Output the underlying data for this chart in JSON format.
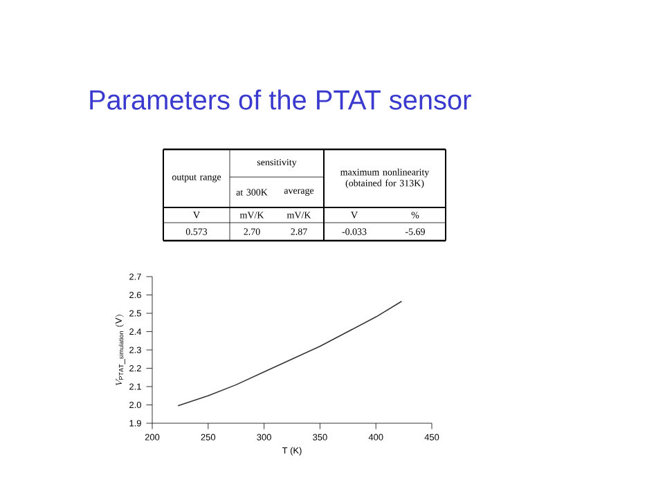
{
  "chart_data": {
    "type": "line",
    "title": "Parameters of the PTAT sensor",
    "xlabel": "T (K)",
    "ylabel": "V_{\\mathrm{PTAT\\_simulation}}\\ (\\mathrm{V})",
    "x": [
      223,
      250,
      275,
      300,
      325,
      350,
      375,
      400,
      423
    ],
    "values": [
      1.995,
      2.05,
      2.11,
      2.18,
      2.25,
      2.32,
      2.4,
      2.48,
      2.565
    ],
    "color": "#333333",
    "xlim": [
      200,
      450
    ],
    "ylim": [
      1.9,
      2.7
    ],
    "xticks": [
      200,
      250,
      300,
      350,
      400,
      450
    ],
    "yticks": [
      {
        "value": 1.9,
        "label": "1.9"
      },
      {
        "value": 2.0,
        "label": "2.0"
      },
      {
        "value": 2.1,
        "label": "2.1"
      },
      {
        "value": 2.2,
        "label": "2.2"
      },
      {
        "value": 2.3,
        "label": "2.3"
      },
      {
        "value": 2.4,
        "label": "2.4"
      },
      {
        "value": 2.5,
        "label": "2.5"
      },
      {
        "value": 2.6,
        "label": "2.6"
      },
      {
        "value": 2.7,
        "label": "2.7"
      }
    ],
    "annotations": [
      "output range",
      "sensitivity",
      "maximum nonlinearity (obtained for 313K)",
      "at 300K",
      "average",
      "V",
      "mV/K",
      "mV/K",
      "V",
      "%",
      "0.573",
      "2.70",
      "2.87",
      "-0.033",
      "-5.69"
    ]
  }
}
